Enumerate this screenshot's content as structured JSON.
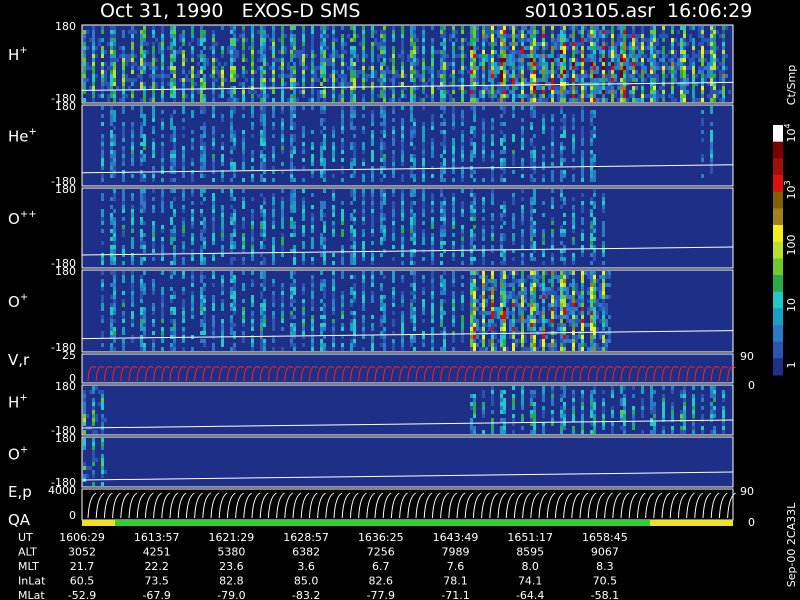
{
  "header": {
    "title": "Oct 31, 1990   EXOS-D SMS",
    "file": "s0103105.asr  16:06:29"
  },
  "panels": [
    {
      "label": "H",
      "sup": "+",
      "top": "180",
      "bottom": "-180"
    },
    {
      "label": "He",
      "sup": "+",
      "top": "180",
      "bottom": "-180"
    },
    {
      "label": "O",
      "sup": "++",
      "top": "180",
      "bottom": "-180"
    },
    {
      "label": "O",
      "sup": "+",
      "top": "180",
      "bottom": "-180"
    },
    {
      "label": "V,r",
      "top": "25",
      "bottom": "0",
      "right_top": "90",
      "right_bottom": "0"
    },
    {
      "label": "H",
      "sup": "+",
      "top": "180",
      "bottom": "-180"
    },
    {
      "label": "O",
      "sup": "+",
      "top": "180",
      "bottom": "-180"
    },
    {
      "label": "E,p",
      "label2": "QA",
      "top": "4000",
      "bottom": "0",
      "right_top": "90",
      "right_bottom": "0"
    }
  ],
  "colorbar": {
    "unit": "Ct/Smp",
    "labels": [
      {
        "base": "10",
        "exp": "4"
      },
      {
        "base": "10",
        "exp": "3"
      },
      {
        "text": "100"
      },
      {
        "text": "10"
      },
      {
        "text": "1"
      }
    ]
  },
  "footer": {
    "rows": [
      {
        "label": "UT",
        "values": [
          "1606:29",
          "1613:57",
          "1621:29",
          "1628:57",
          "1636:25",
          "1643:49",
          "1651:17",
          "1658:45"
        ]
      },
      {
        "label": "ALT",
        "values": [
          "3052",
          "4251",
          "5380",
          "6382",
          "7256",
          "7989",
          "8595",
          "9067"
        ]
      },
      {
        "label": "MLT",
        "values": [
          "21.7",
          "22.2",
          "23.6",
          "3.6",
          "6.7",
          "7.6",
          "8.0",
          "8.3"
        ]
      },
      {
        "label": "InLat",
        "values": [
          "60.5",
          "73.5",
          "82.8",
          "85.0",
          "82.6",
          "78.1",
          "74.1",
          "70.5"
        ]
      },
      {
        "label": "MLat",
        "values": [
          "-52.9",
          "-67.9",
          "-79.0",
          "-83.2",
          "-77.9",
          "-71.1",
          "-64.4",
          "-58.1"
        ]
      }
    ],
    "note": "Sep-00 2CA33L"
  }
}
